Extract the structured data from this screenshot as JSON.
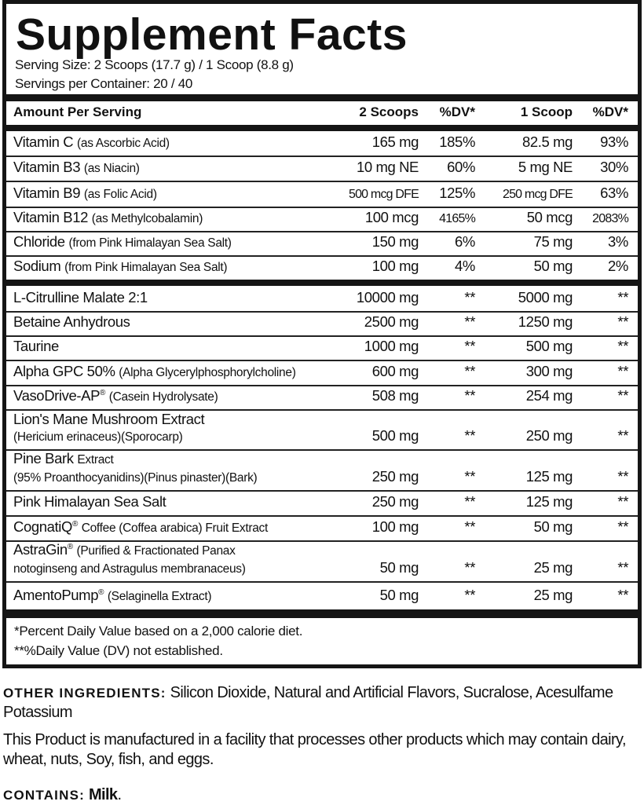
{
  "title": "Supplement Facts",
  "serving_size": "Serving Size: 2 Scoops (17.7 g) / 1 Scoop (8.8 g)",
  "servings_per_container": "Servings per Container: 20 / 40",
  "header": {
    "amount": "Amount Per Serving",
    "col1": "2 Scoops",
    "col2": "%DV*",
    "col3": "1 Scoop",
    "col4": "%DV*"
  },
  "vitamins": [
    {
      "name": "Vitamin C",
      "sub": "(as Ascorbic Acid)",
      "v1": "165 mg",
      "dv1": "185%",
      "v2": "82.5 mg",
      "dv2": "93%"
    },
    {
      "name": "Vitamin B3",
      "sub": "(as Niacin)",
      "v1": "10 mg NE",
      "dv1": "60%",
      "v2": "5 mg NE",
      "dv2": "30%"
    },
    {
      "name": "Vitamin B9",
      "sub": "(as Folic Acid)",
      "v1": "500 mcg DFE",
      "dv1": "125%",
      "v2": "250 mcg DFE",
      "dv2": "63%"
    },
    {
      "name": "Vitamin B12",
      "sub": "(as Methylcobalamin)",
      "v1": "100 mcg",
      "dv1": "4165%",
      "v2": "50 mcg",
      "dv2": "2083%"
    },
    {
      "name": "Chloride",
      "sub": "(from Pink Himalayan Sea Salt)",
      "v1": "150 mg",
      "dv1": "6%",
      "v2": "75 mg",
      "dv2": "3%"
    },
    {
      "name": "Sodium",
      "sub": "(from Pink Himalayan Sea Salt)",
      "v1": "100 mg",
      "dv1": "4%",
      "v2": "50 mg",
      "dv2": "2%"
    }
  ],
  "ingredients": [
    {
      "name": "L-Citrulline Malate 2:1",
      "sub": "",
      "v1": "10000 mg",
      "dv1": "**",
      "v2": "5000 mg",
      "dv2": "**"
    },
    {
      "name": "Betaine Anhydrous",
      "sub": "",
      "v1": "2500 mg",
      "dv1": "**",
      "v2": "1250 mg",
      "dv2": "**"
    },
    {
      "name": "Taurine",
      "sub": "",
      "v1": "1000 mg",
      "dv1": "**",
      "v2": "500 mg",
      "dv2": "**"
    },
    {
      "name": "Alpha GPC 50%",
      "sub": "(Alpha Glycerylphosphorylcholine)",
      "v1": "600 mg",
      "dv1": "**",
      "v2": "300 mg",
      "dv2": "**"
    },
    {
      "name": "VasoDrive-AP",
      "reg": "®",
      "sub": "(Casein Hydrolysate)",
      "v1": "508 mg",
      "dv1": "**",
      "v2": "254 mg",
      "dv2": "**"
    },
    {
      "name": "Lion's Mane Mushroom Extract",
      "line2": "(Hericium erinaceus)(Sporocarp)",
      "v1": "500 mg",
      "dv1": "**",
      "v2": "250 mg",
      "dv2": "**"
    },
    {
      "name": "Pine Bark",
      "sub": "Extract",
      "line2": "(95% Proanthocyanidins)(Pinus pinaster)(Bark)",
      "v1": "250 mg",
      "dv1": "**",
      "v2": "125 mg",
      "dv2": "**"
    },
    {
      "name": "Pink Himalayan Sea Salt",
      "sub": "",
      "v1": "250 mg",
      "dv1": "**",
      "v2": "125 mg",
      "dv2": "**"
    },
    {
      "name": "CognatiQ",
      "reg": "®",
      "sub": "Coffee (Coffea arabica) Fruit Extract",
      "v1": "100 mg",
      "dv1": "**",
      "v2": "50 mg",
      "dv2": "**"
    },
    {
      "name": "AstraGin",
      "reg": "®",
      "sub": "(Purified & Fractionated Panax",
      "line2": "notoginseng and Astragulus membranaceus)",
      "v1": "50 mg",
      "dv1": "**",
      "v2": "25 mg",
      "dv2": "**"
    },
    {
      "name": "AmentoPump",
      "reg": "®",
      "sub": "(Selaginella Extract)",
      "v1": "50 mg",
      "dv1": "**",
      "v2": "25 mg",
      "dv2": "**"
    }
  ],
  "footnotes": [
    "*Percent Daily Value based on a 2,000 calorie diet.",
    "**%Daily Value (DV) not established."
  ],
  "other_ingredients": {
    "label": "OTHER INGREDIENTS:",
    "text": "Silicon Dioxide, Natural and Artificial Flavors, Sucralose, Acesulfame Potassium"
  },
  "facility_warning": "This Product is manufactured in a facility that processes other products which may contain dairy, wheat, nuts, Soy, fish, and eggs.",
  "contains": {
    "label": "CONTAINS:",
    "value": "Milk",
    "period": "."
  }
}
